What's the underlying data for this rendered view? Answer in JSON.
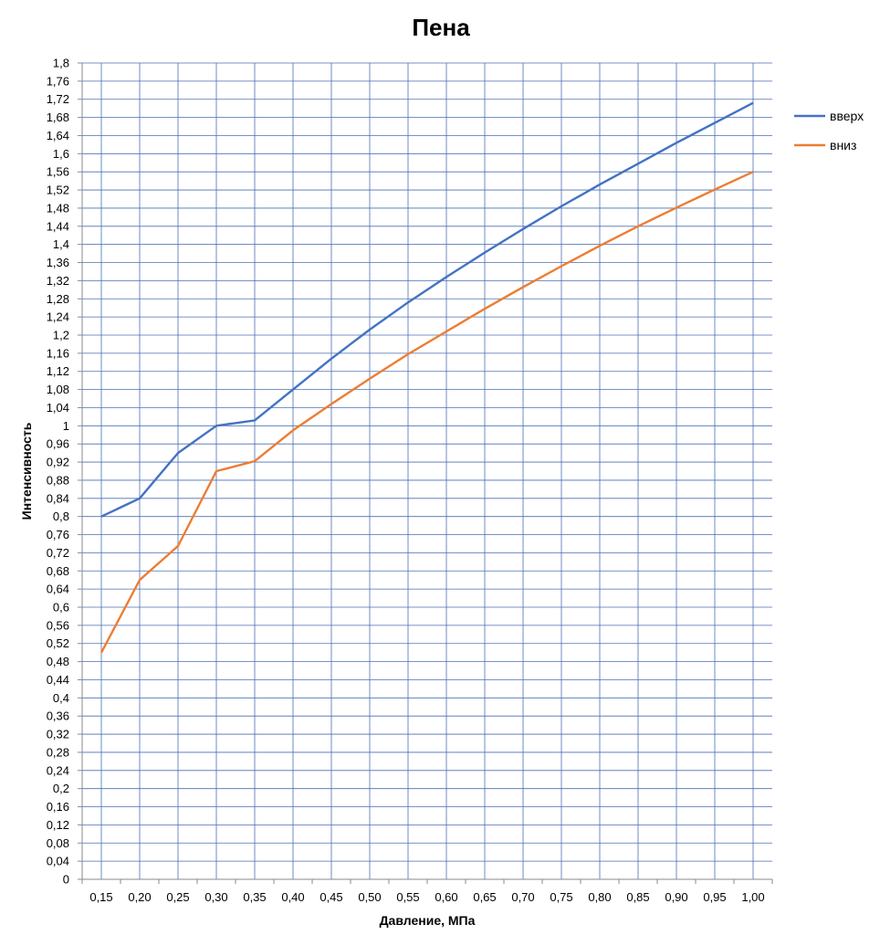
{
  "chart_data": {
    "type": "line",
    "title": "Пена",
    "xlabel": "Давление, МПа",
    "ylabel": "Интенсивность",
    "categories": [
      "0,15",
      "0,20",
      "0,25",
      "0,30",
      "0,35",
      "0,40",
      "0,45",
      "0,50",
      "0,55",
      "0,60",
      "0,65",
      "0,70",
      "0,75",
      "0,80",
      "0,85",
      "0,90",
      "0,95",
      "1,00"
    ],
    "x": [
      0.15,
      0.2,
      0.25,
      0.3,
      0.35,
      0.4,
      0.45,
      0.5,
      0.55,
      0.6,
      0.65,
      0.7,
      0.75,
      0.8,
      0.85,
      0.9,
      0.95,
      1.0
    ],
    "series": [
      {
        "name": "вверх",
        "color": "#4472c4",
        "values": [
          0.8,
          0.84,
          0.94,
          1.0,
          1.012,
          1.08,
          1.148,
          1.212,
          1.272,
          1.328,
          1.382,
          1.434,
          1.484,
          1.532,
          1.578,
          1.624,
          1.668,
          1.712
        ]
      },
      {
        "name": "вниз",
        "color": "#ed7d31",
        "values": [
          0.5,
          0.66,
          0.735,
          0.9,
          0.922,
          0.99,
          1.048,
          1.104,
          1.158,
          1.208,
          1.258,
          1.306,
          1.352,
          1.397,
          1.44,
          1.481,
          1.521,
          1.56
        ]
      }
    ],
    "ylim": [
      0,
      1.8
    ],
    "yticks": [
      "0",
      "0,04",
      "0,08",
      "0,12",
      "0,16",
      "0,2",
      "0,24",
      "0,28",
      "0,32",
      "0,36",
      "0,4",
      "0,44",
      "0,48",
      "0,52",
      "0,56",
      "0,6",
      "0,64",
      "0,68",
      "0,72",
      "0,76",
      "0,8",
      "0,84",
      "0,88",
      "0,92",
      "0,96",
      "1",
      "1,04",
      "1,08",
      "1,12",
      "1,16",
      "1,2",
      "1,24",
      "1,28",
      "1,32",
      "1,36",
      "1,4",
      "1,44",
      "1,48",
      "1,52",
      "1,56",
      "1,6",
      "1,64",
      "1,68",
      "1,72",
      "1,76",
      "1,8"
    ],
    "grid": true,
    "legend_position": "right"
  }
}
